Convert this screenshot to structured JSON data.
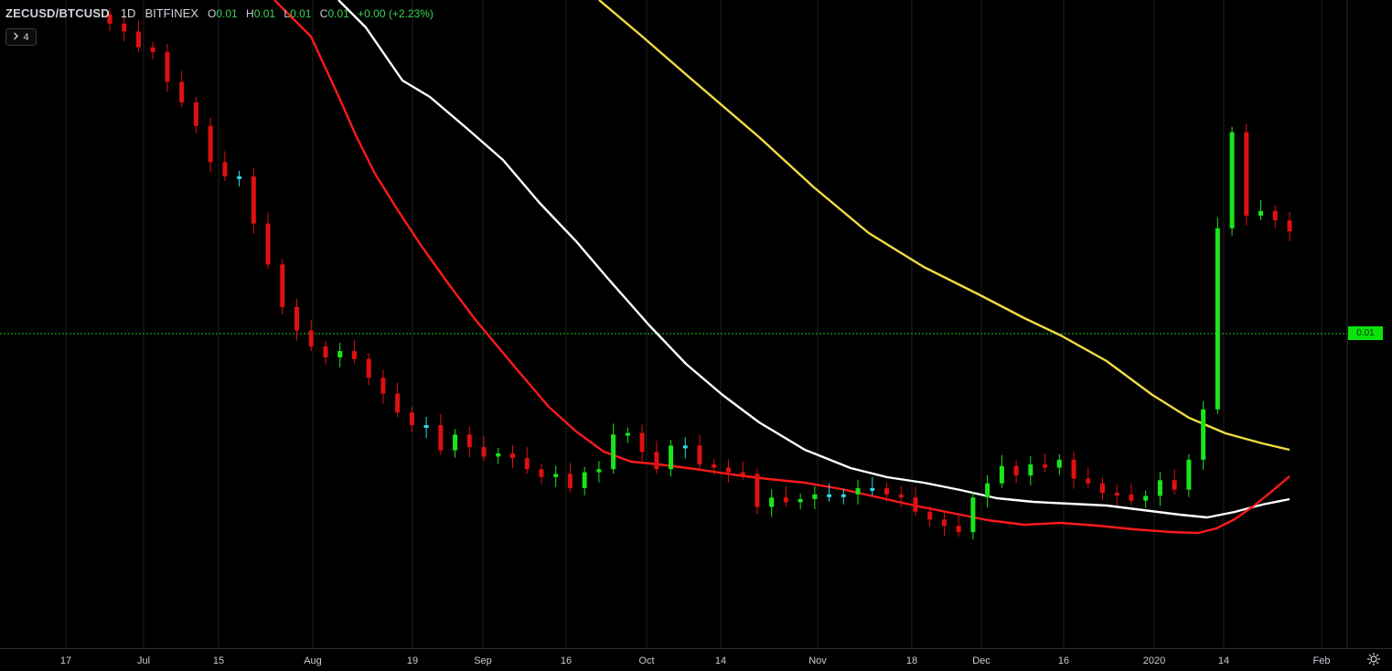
{
  "legend": {
    "symbol": "ZECUSD/BTCUSD",
    "timeframe": "1D",
    "exchange": "BITFINEX",
    "o_label": "O",
    "o_value": "0.01",
    "h_label": "H",
    "h_value": "0.01",
    "l_label": "L",
    "l_value": "0.01",
    "c_label": "C",
    "c_value": "0.01",
    "change": "+0.00 (+2.23%)"
  },
  "collapse_button": {
    "icon": "chevron-right-icon",
    "count": "4"
  },
  "price_axis": {
    "last_price_label": "0.01"
  },
  "settings": {
    "icon": "gear-icon"
  },
  "colors": {
    "background": "#000000",
    "up_candle": "#19e619",
    "down_candle": "#e01010",
    "doji_candle": "#30d8e8",
    "ma_red": "#ff1a1a",
    "ma_white": "#ffffff",
    "ma_yellow": "#f2dc40",
    "last_price_line": "#1ecb1e",
    "grid": "#1f1f1f",
    "axis_text": "#c8ccd4"
  },
  "chart_data": {
    "type": "candlestick",
    "title": "ZECUSD/BTCUSD 1D BITFINEX",
    "x_ticks": [
      "17",
      "Jul",
      "15",
      "Aug",
      "19",
      "Sep",
      "16",
      "Oct",
      "14",
      "Nov",
      "18",
      "Dec",
      "16",
      "2020",
      "14",
      "Feb"
    ],
    "y_axis_visible_label": "0.01",
    "last_price": 0.01,
    "grid": true,
    "candles_close_path": [
      96.5,
      96.0,
      95.0,
      94.7,
      92.8,
      91.5,
      90.0,
      87.7,
      86.8,
      86.8,
      83.8,
      81.2,
      78.5,
      77.0,
      76.0,
      75.3,
      75.7,
      75.2,
      74.0,
      73.0,
      71.8,
      71.0,
      71.0,
      69.4,
      70.4,
      69.6,
      69.0,
      69.2,
      68.9,
      68.2,
      67.7,
      67.9,
      67.0,
      68.0,
      68.2,
      70.4,
      70.5,
      69.3,
      68.2,
      69.7,
      69.7,
      68.5,
      68.3,
      68.0,
      67.9,
      65.8,
      66.4,
      66.1,
      66.3,
      66.6,
      66.6,
      66.6,
      67.0,
      67.0,
      66.6,
      66.4,
      65.5,
      65.0,
      64.6,
      64.2,
      66.4,
      67.3,
      68.4,
      67.8,
      68.5,
      68.3,
      68.8,
      67.6,
      67.3,
      66.7,
      66.6,
      66.2,
      66.5,
      67.5,
      66.9,
      68.8,
      72.0,
      83.5,
      89.6,
      84.3,
      84.6,
      84.0,
      83.3
    ],
    "moving_averages": [
      {
        "color": "red"
      },
      {
        "color": "white"
      },
      {
        "color": "yellow"
      }
    ]
  }
}
